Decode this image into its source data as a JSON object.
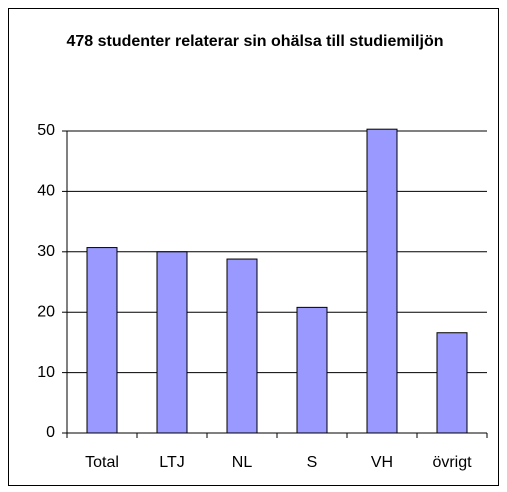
{
  "chart_data": {
    "type": "bar",
    "title": "478 studenter relaterar sin ohälsa till studiemiljön",
    "categories": [
      "Total",
      "LTJ",
      "NL",
      "S",
      "VH",
      "övrigt"
    ],
    "values": [
      30.7,
      30,
      28.8,
      20.8,
      50.3,
      16.6
    ],
    "color": "#9999ff",
    "ylim": [
      0,
      50
    ],
    "yticks": [
      0,
      10,
      20,
      30,
      40,
      50
    ],
    "grid": true
  }
}
